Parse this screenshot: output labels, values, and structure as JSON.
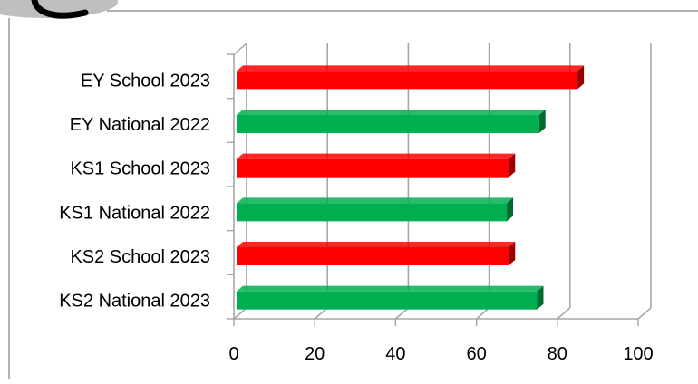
{
  "colors": {
    "school": "#ff0000",
    "national": "#00b050",
    "frame": "#7f7f7f",
    "grid": "#a6a6a6",
    "blob": "#bfbfbf"
  },
  "chart_data": {
    "type": "bar",
    "orientation": "horizontal",
    "style": "3d",
    "title": "",
    "xlabel": "",
    "ylabel": "",
    "categories": [
      "EY School 2023",
      "EY National 2022",
      "KS1 School 2023",
      "KS1 National 2022",
      "KS2 School 2023",
      "KS2 National 2023"
    ],
    "values": [
      85,
      75.5,
      68,
      67.5,
      68,
      75
    ],
    "bar_colors": [
      "#ff0000",
      "#00b050",
      "#ff0000",
      "#00b050",
      "#ff0000",
      "#00b050"
    ],
    "xlim": [
      0,
      100
    ],
    "x_ticks": [
      "0",
      "20",
      "40",
      "60",
      "80",
      "100"
    ],
    "grid": true,
    "legend": "none"
  }
}
